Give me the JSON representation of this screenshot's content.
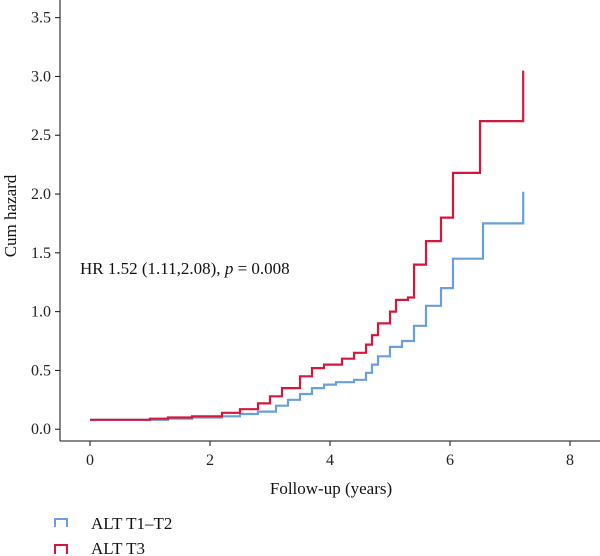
{
  "chart_data": {
    "type": "line",
    "xlabel": "Follow-up (years)",
    "ylabel": "Cum hazard",
    "xlim": [
      -0.5,
      8.5
    ],
    "ylim": [
      -0.1,
      3.65
    ],
    "x_ticks": [
      0,
      2,
      4,
      6,
      8
    ],
    "y_ticks": [
      0.0,
      0.5,
      1.0,
      1.5,
      2.0,
      2.5,
      3.0,
      3.5
    ],
    "grid": false,
    "legend_position": "bottom-left",
    "annotation": {
      "prefix": "HR 1.52 (1.11,2.08), ",
      "italic": "p",
      "suffix": " = 0.008"
    },
    "series": [
      {
        "name": "ALT T1–T2",
        "color": "#6a9fdc",
        "step": true,
        "points": [
          [
            0.0,
            0.08
          ],
          [
            1.0,
            0.08
          ],
          [
            1.3,
            0.09
          ],
          [
            1.7,
            0.1
          ],
          [
            2.2,
            0.11
          ],
          [
            2.5,
            0.13
          ],
          [
            2.8,
            0.15
          ],
          [
            3.1,
            0.2
          ],
          [
            3.3,
            0.25
          ],
          [
            3.5,
            0.3
          ],
          [
            3.7,
            0.35
          ],
          [
            3.9,
            0.38
          ],
          [
            4.1,
            0.4
          ],
          [
            4.4,
            0.42
          ],
          [
            4.6,
            0.48
          ],
          [
            4.7,
            0.55
          ],
          [
            4.8,
            0.62
          ],
          [
            5.0,
            0.7
          ],
          [
            5.2,
            0.75
          ],
          [
            5.4,
            0.88
          ],
          [
            5.6,
            1.05
          ],
          [
            5.85,
            1.2
          ],
          [
            6.05,
            1.45
          ],
          [
            6.55,
            1.75
          ],
          [
            7.22,
            1.75
          ],
          [
            7.22,
            2.02
          ]
        ]
      },
      {
        "name": "ALT T3",
        "color": "#d4183d",
        "step": true,
        "points": [
          [
            0.0,
            0.08
          ],
          [
            1.0,
            0.09
          ],
          [
            1.3,
            0.1
          ],
          [
            1.7,
            0.11
          ],
          [
            2.2,
            0.14
          ],
          [
            2.5,
            0.17
          ],
          [
            2.8,
            0.22
          ],
          [
            3.0,
            0.28
          ],
          [
            3.2,
            0.35
          ],
          [
            3.5,
            0.45
          ],
          [
            3.7,
            0.52
          ],
          [
            3.9,
            0.55
          ],
          [
            4.2,
            0.6
          ],
          [
            4.4,
            0.65
          ],
          [
            4.6,
            0.72
          ],
          [
            4.7,
            0.8
          ],
          [
            4.8,
            0.9
          ],
          [
            5.0,
            1.0
          ],
          [
            5.1,
            1.1
          ],
          [
            5.3,
            1.12
          ],
          [
            5.4,
            1.4
          ],
          [
            5.6,
            1.6
          ],
          [
            5.85,
            1.8
          ],
          [
            6.05,
            2.18
          ],
          [
            6.4,
            2.18
          ],
          [
            6.5,
            2.62
          ],
          [
            7.22,
            2.62
          ],
          [
            7.22,
            3.05
          ]
        ]
      }
    ]
  }
}
